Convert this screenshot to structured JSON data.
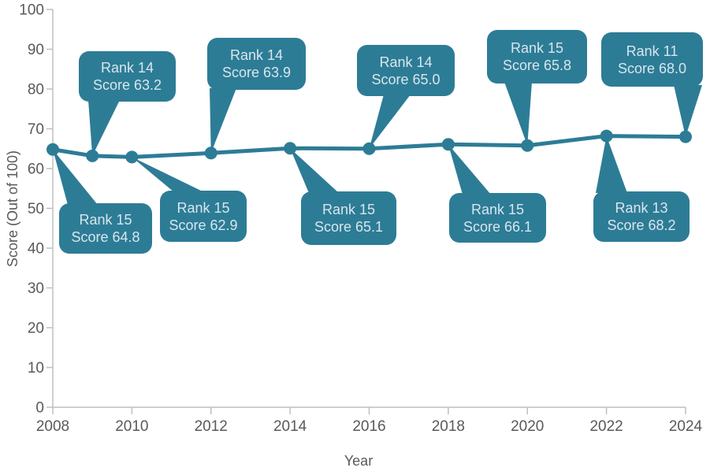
{
  "chart_data": {
    "type": "line",
    "title": "",
    "xlabel": "Year",
    "ylabel": "Score (Out of 100)",
    "xlim": [
      2008,
      2024
    ],
    "ylim": [
      0,
      100
    ],
    "xticks": [
      2008,
      2010,
      2012,
      2014,
      2016,
      2018,
      2020,
      2022,
      2024
    ],
    "yticks": [
      0,
      10,
      20,
      30,
      40,
      50,
      60,
      70,
      80,
      90,
      100
    ],
    "grid": false,
    "legend": "none",
    "line_color": "#2d7c96",
    "marker_color": "#2d7c96",
    "axis_color": "#bfbfbf",
    "tick_label_color": "#595959",
    "callout_bg": "#2d7c96",
    "callout_text_color": "#d8e6ed",
    "points": [
      {
        "year": 2008,
        "rank": 15,
        "score": 64.8,
        "label_rank": "Rank 15",
        "label_score": "Score 64.8",
        "callout_position": "below"
      },
      {
        "year": 2009,
        "rank": 14,
        "score": 63.2,
        "label_rank": "Rank 14",
        "label_score": "Score 63.2",
        "callout_position": "above"
      },
      {
        "year": 2010,
        "rank": 15,
        "score": 62.9,
        "label_rank": "Rank 15",
        "label_score": "Score 62.9",
        "callout_position": "below"
      },
      {
        "year": 2012,
        "rank": 14,
        "score": 63.9,
        "label_rank": "Rank 14",
        "label_score": "Score 63.9",
        "callout_position": "above"
      },
      {
        "year": 2014,
        "rank": 15,
        "score": 65.1,
        "label_rank": "Rank 15",
        "label_score": "Score 65.1",
        "callout_position": "below"
      },
      {
        "year": 2016,
        "rank": 14,
        "score": 65.0,
        "label_rank": "Rank 14",
        "label_score": "Score 65.0",
        "callout_position": "above"
      },
      {
        "year": 2018,
        "rank": 15,
        "score": 66.1,
        "label_rank": "Rank 15",
        "label_score": "Score 66.1",
        "callout_position": "below"
      },
      {
        "year": 2020,
        "rank": 15,
        "score": 65.8,
        "label_rank": "Rank 15",
        "label_score": "Score 65.8",
        "callout_position": "above"
      },
      {
        "year": 2022,
        "rank": 13,
        "score": 68.2,
        "label_rank": "Rank 13",
        "label_score": "Score 68.2",
        "callout_position": "below"
      },
      {
        "year": 2024,
        "rank": 11,
        "score": 68.0,
        "label_rank": "Rank 11",
        "label_score": "Score 68.0",
        "callout_position": "above"
      }
    ]
  }
}
